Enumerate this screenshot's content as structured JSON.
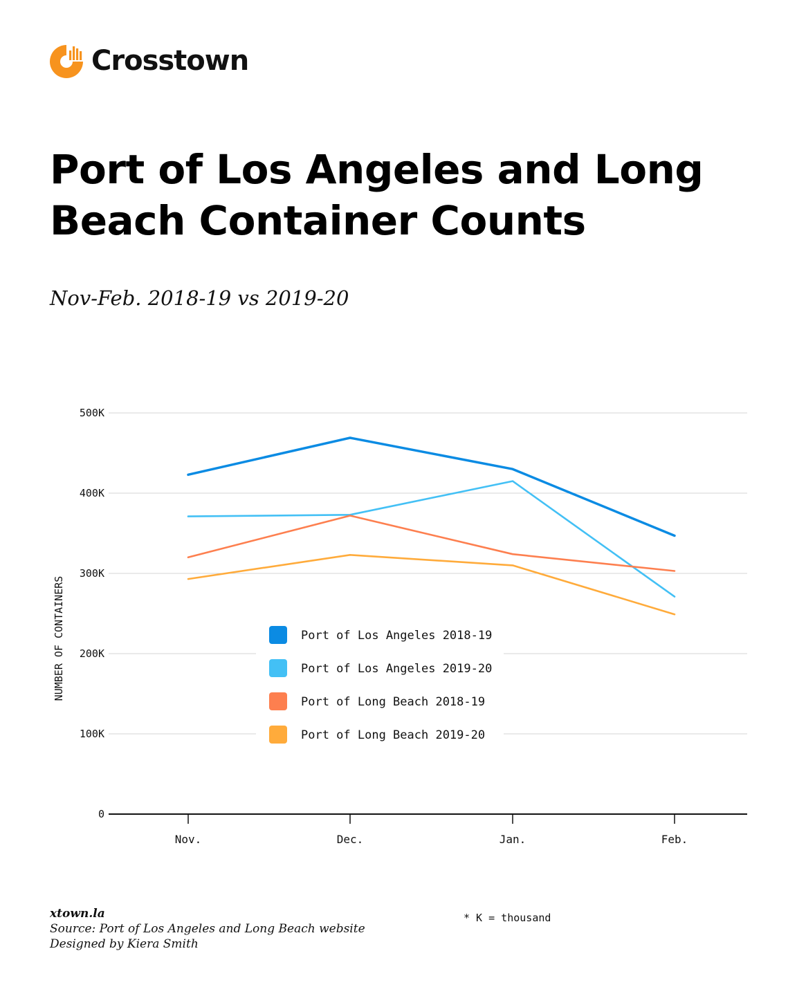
{
  "brand": {
    "name": "Crosstown",
    "color": "#f7931e"
  },
  "title": "Port of Los Angeles and Long Beach Container Counts",
  "subtitle": "Nov-Feb. 2018-19 vs 2019-20",
  "chart_data": {
    "type": "line",
    "ylabel": "NUMBER OF CONTAINERS",
    "xlabel": "",
    "categories": [
      "Nov.",
      "Dec.",
      "Jan.",
      "Feb."
    ],
    "ylim": [
      0,
      500000
    ],
    "yticks": [
      {
        "value": 0,
        "label": "0"
      },
      {
        "value": 100000,
        "label": "100K"
      },
      {
        "value": 200000,
        "label": "200K"
      },
      {
        "value": 300000,
        "label": "300K"
      },
      {
        "value": 400000,
        "label": "400K"
      },
      {
        "value": 500000,
        "label": "500K"
      }
    ],
    "grid": true,
    "legend_position": "center-left",
    "series": [
      {
        "name": "Port of Los Angeles 2018-19",
        "color": "#0b8be3",
        "values": [
          423000,
          469000,
          430000,
          347000
        ],
        "bold": true
      },
      {
        "name": "Port of Los Angeles 2019-20",
        "color": "#43c0f5",
        "values": [
          371000,
          373000,
          415000,
          271000
        ]
      },
      {
        "name": "Port of Long Beach 2018-19",
        "color": "#fd7f4f",
        "values": [
          320000,
          372000,
          324000,
          303000
        ]
      },
      {
        "name": "Port of Long Beach 2019-20",
        "color": "#ffab3b",
        "values": [
          293000,
          323000,
          310000,
          249000
        ]
      }
    ]
  },
  "footer": {
    "site": "xtown.la",
    "source": "Source: Port of Los Angeles and Long Beach website",
    "designer": "Designed by Kiera Smith"
  },
  "note": "* K = thousand"
}
